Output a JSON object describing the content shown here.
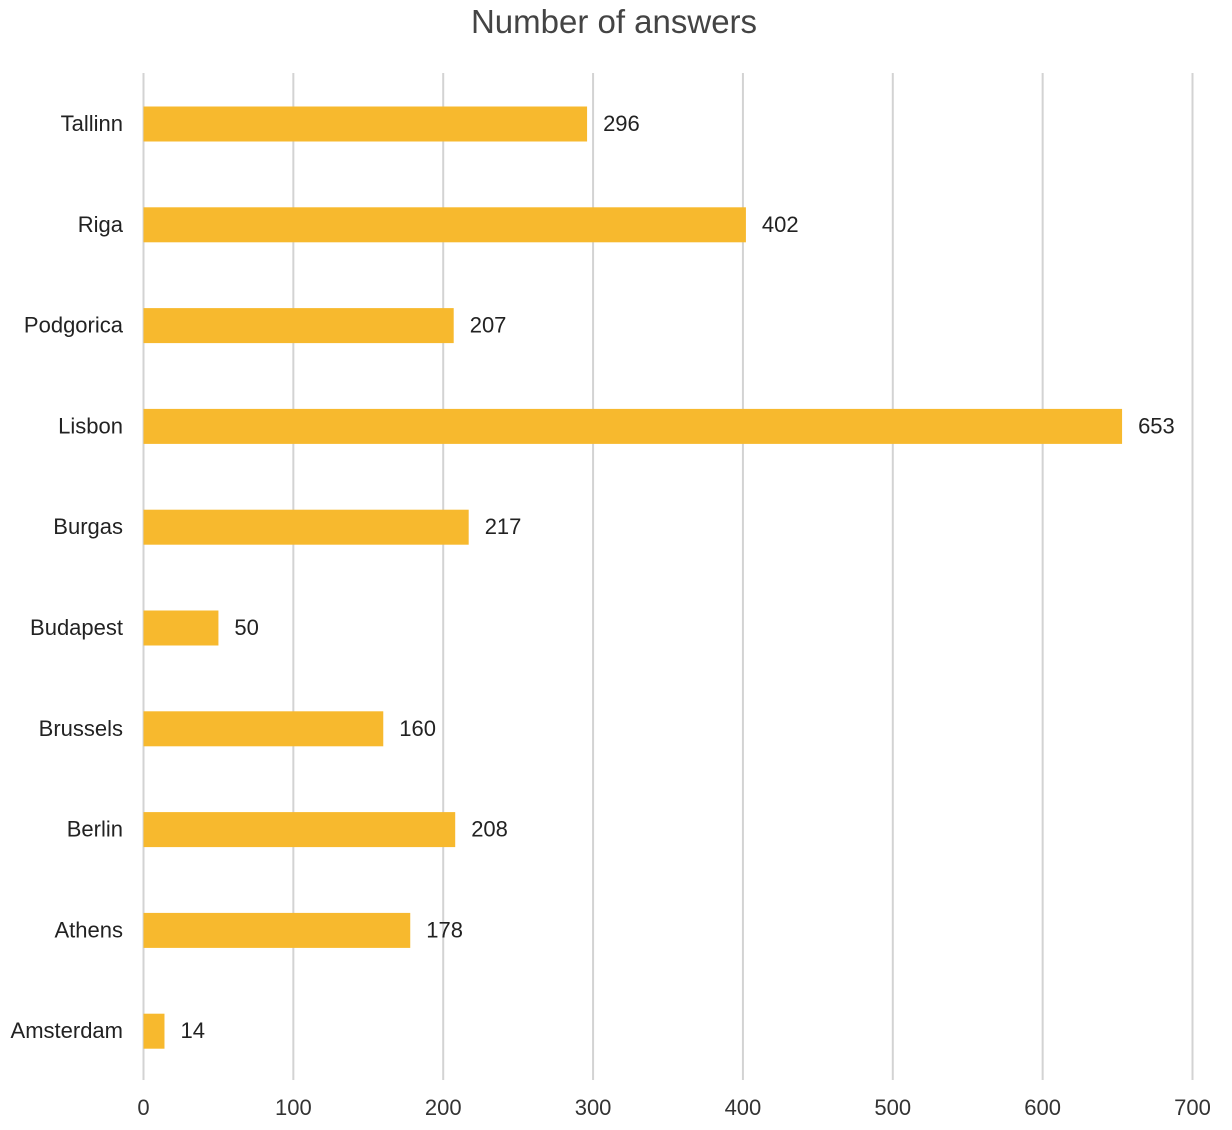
{
  "chart_data": {
    "type": "bar",
    "orientation": "horizontal",
    "title": "Number of answers",
    "categories": [
      "Tallinn",
      "Riga",
      "Podgorica",
      "Lisbon",
      "Burgas",
      "Budapest",
      "Brussels",
      "Berlin",
      "Athens",
      "Amsterdam"
    ],
    "values": [
      296,
      402,
      207,
      653,
      217,
      50,
      160,
      208,
      178,
      14
    ],
    "xlim": [
      0,
      700
    ],
    "xticks": [
      0,
      100,
      200,
      300,
      400,
      500,
      600,
      700
    ],
    "xlabel": "",
    "ylabel": "",
    "grid": true,
    "legend": "none",
    "data_labels": true,
    "bar_color": "#f7b92e"
  }
}
